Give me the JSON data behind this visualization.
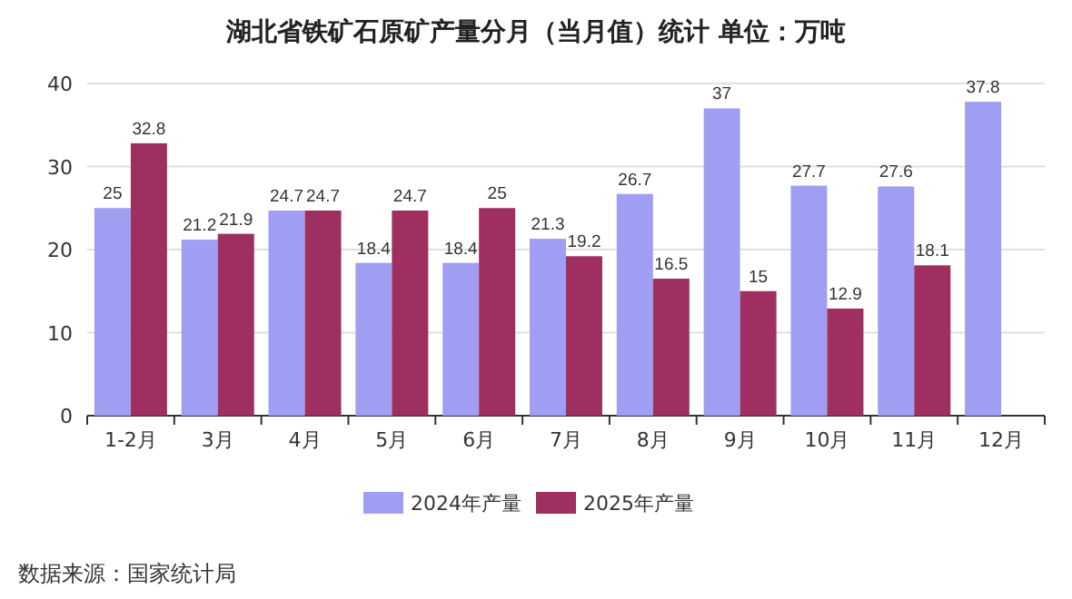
{
  "chart_data": {
    "type": "bar",
    "title": "湖北省铁矿石原矿产量分月（当月值）统计  单位：万吨",
    "categories": [
      "1-2月",
      "3月",
      "4月",
      "5月",
      "6月",
      "7月",
      "8月",
      "9月",
      "10月",
      "11月",
      "12月"
    ],
    "series": [
      {
        "name": "2024年产量",
        "color": "#a09ef2",
        "values": [
          25,
          21.2,
          24.7,
          18.4,
          18.4,
          21.3,
          26.7,
          37,
          27.7,
          27.6,
          37.8
        ]
      },
      {
        "name": "2025年产量",
        "color": "#9e2f60",
        "values": [
          32.8,
          21.9,
          24.7,
          24.7,
          25,
          19.2,
          16.5,
          15,
          12.9,
          18.1,
          null
        ]
      }
    ],
    "ylim": [
      0,
      40
    ],
    "yticks": [
      0,
      10,
      20,
      30,
      40
    ],
    "grid": "y",
    "legend": "bottom",
    "data_labels": true,
    "annotations": [
      "数据来源：国家统计局"
    ]
  }
}
